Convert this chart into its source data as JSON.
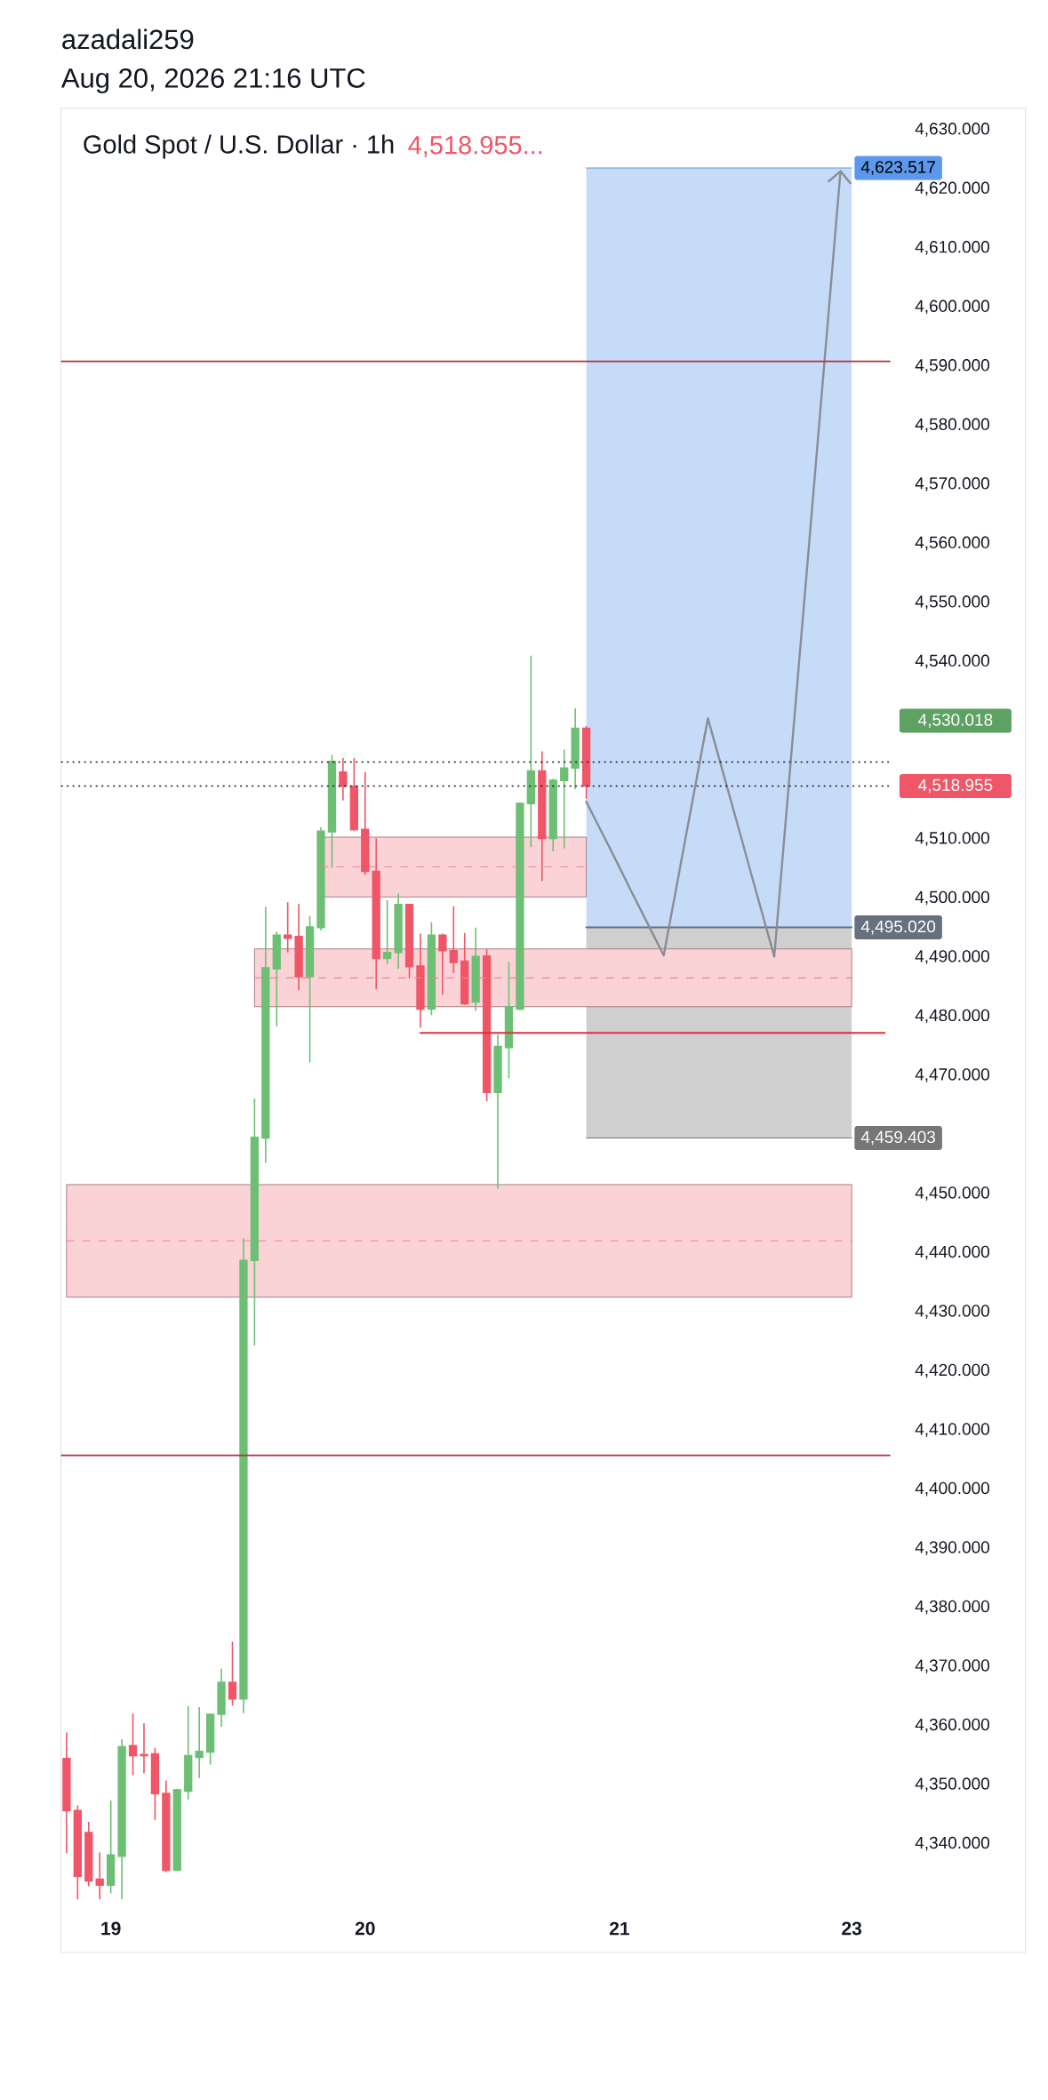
{
  "chart_data": {
    "type": "candlestick",
    "title": "Gold Spot / U.S. Dollar · 1h",
    "subtitle": "Aug 20, 2026 21:16 UTC",
    "annotations": [
      "azadali259",
      "4,518.955...",
      "4,530.018"
    ],
    "categories": [
      null,
      null,
      null,
      null,
      "19",
      null,
      null,
      null,
      null,
      null,
      null,
      null,
      null,
      null,
      null,
      null,
      null,
      null,
      null,
      null,
      null,
      null,
      null,
      null,
      null,
      null,
      null,
      "20",
      null,
      null,
      null,
      null,
      null,
      null,
      null,
      null,
      null,
      null,
      null,
      null,
      null,
      null,
      null,
      null,
      null,
      null,
      null,
      null,
      null,
      null,
      "21",
      null,
      null,
      null,
      null,
      null,
      null,
      null,
      null,
      null,
      null,
      null,
      null,
      null,
      null,
      null,
      null,
      null,
      null,
      null,
      null,
      "23",
      null,
      null,
      null
    ],
    "ohlc": [
      [
        4354.4,
        4358.8,
        4338.4,
        4345.6
      ],
      [
        4345.6,
        4346.5,
        4330.6,
        4334.5
      ],
      [
        4341.9,
        4343.7,
        4332.8,
        4333.7
      ],
      [
        4334.0,
        4338.5,
        4330.6,
        4333.0
      ],
      [
        4333.0,
        4347.3,
        4331.6,
        4338.1
      ],
      [
        4337.9,
        4357.7,
        4330.6,
        4356.4
      ],
      [
        4356.6,
        4362.0,
        4351.6,
        4354.9
      ],
      [
        4355.1,
        4360.4,
        4351.9,
        4354.9
      ],
      [
        4355.2,
        4356.2,
        4344.0,
        4348.5
      ],
      [
        4348.5,
        4350.7,
        4335.2,
        4335.5
      ],
      [
        4335.5,
        4349.3,
        4335.4,
        4349.1
      ],
      [
        4348.9,
        4363.3,
        4347.5,
        4354.9
      ],
      [
        4354.6,
        4363.1,
        4351.1,
        4355.6
      ],
      [
        4355.5,
        4362.0,
        4353.4,
        4361.9
      ],
      [
        4361.9,
        4369.6,
        4359.8,
        4367.3
      ],
      [
        4367.3,
        4374.2,
        4363.4,
        4364.5
      ],
      [
        4364.5,
        4442.4,
        4362.1,
        4438.7
      ],
      [
        4438.7,
        4466.1,
        4424.3,
        4459.5
      ],
      [
        4459.4,
        4498.5,
        4455.2,
        4488.2
      ],
      [
        4488.0,
        4494.3,
        4478.3,
        4493.7
      ],
      [
        4493.7,
        4499.3,
        4490.8,
        4493.2
      ],
      [
        4493.5,
        4499.0,
        4484.4,
        4486.7
      ],
      [
        4486.7,
        4497.0,
        4472.2,
        4495.1
      ],
      [
        4495.0,
        4512.0,
        4494.5,
        4511.3
      ],
      [
        4511.2,
        4524.2,
        4505.1,
        4523.1
      ],
      [
        4521.3,
        4523.7,
        4516.5,
        4518.9
      ],
      [
        4518.9,
        4523.7,
        4511.3,
        4511.6
      ],
      [
        4511.6,
        4521.3,
        4503.9,
        4504.5
      ],
      [
        4504.5,
        4510.1,
        4484.6,
        4489.8
      ],
      [
        4489.8,
        4499.7,
        4488.8,
        4490.8
      ],
      [
        4490.8,
        4500.8,
        4488.0,
        4498.9
      ],
      [
        4498.9,
        4499.0,
        4486.4,
        4488.4
      ],
      [
        4488.5,
        4494.0,
        4478.1,
        4481.2
      ],
      [
        4481.2,
        4495.9,
        4480.2,
        4493.7
      ],
      [
        4493.7,
        4494.0,
        4483.6,
        4491.1
      ],
      [
        4491.1,
        4498.6,
        4487.3,
        4489.1
      ],
      [
        4489.3,
        4494.1,
        4481.9,
        4482.1
      ],
      [
        4482.4,
        4495.0,
        4480.9,
        4490.1
      ],
      [
        4490.2,
        4491.3,
        4465.6,
        4467.1
      ],
      [
        4467.1,
        4476.9,
        4450.8,
        4474.9
      ],
      [
        4474.7,
        4489.2,
        4469.5,
        4481.6
      ],
      [
        4481.2,
        4516.2,
        4481.0,
        4516.0
      ],
      [
        4516.0,
        4541.0,
        4508.6,
        4521.5
      ],
      [
        4521.5,
        4524.8,
        4502.9,
        4510.1
      ],
      [
        4510.1,
        4520.2,
        4507.9,
        4519.9
      ],
      [
        4519.9,
        4525.1,
        4508.4,
        4522.0
      ],
      [
        4522.0,
        4532.1,
        4518.4,
        4528.7
      ],
      [
        4528.7,
        4529.1,
        4516.8,
        4518.955
      ],
      null,
      null,
      null,
      null,
      null,
      null,
      null,
      null,
      null,
      null,
      null,
      null,
      null,
      null,
      null,
      null,
      null,
      null,
      null,
      null,
      null,
      null,
      null,
      null,
      null,
      null,
      null
    ],
    "colors": [
      "#ef5667",
      "#ef5667",
      "#ef5667",
      "#ef5667",
      "#6dbf75",
      "#6dbf75",
      "#ef5667",
      "#ef5667",
      "#ef5667",
      "#ef5667",
      "#6dbf75",
      "#6dbf75",
      "#6dbf75",
      "#6dbf75",
      "#6dbf75",
      "#ef5667",
      "#6dbf75",
      "#6dbf75",
      "#6dbf75",
      "#6dbf75",
      "#ef5667",
      "#ef5667",
      "#6dbf75",
      "#6dbf75",
      "#6dbf75",
      "#ef5667",
      "#ef5667",
      "#ef5667",
      "#ef5667",
      "#6dbf75",
      "#6dbf75",
      "#ef5667",
      "#ef5667",
      "#6dbf75",
      "#ef5667",
      "#ef5667",
      "#ef5667",
      "#6dbf75",
      "#ef5667",
      "#6dbf75",
      "#6dbf75",
      "#6dbf75",
      "#6dbf75",
      "#ef5667",
      "#6dbf75",
      "#6dbf75",
      "#6dbf75",
      "#ef5667",
      null,
      null,
      null,
      null,
      null,
      null,
      null,
      null,
      null,
      null,
      null,
      null,
      null,
      null,
      null,
      null,
      null,
      null,
      null,
      null,
      null,
      null,
      null,
      null,
      null,
      null,
      null
    ],
    "series": [
      {
        "type": "line",
        "color": "#5c98eb",
        "values": [
          null,
          null,
          null,
          null,
          null,
          null,
          null,
          null,
          null,
          null,
          null,
          null,
          null,
          null,
          null,
          null,
          null,
          null,
          null,
          null,
          null,
          null,
          null,
          null,
          null,
          null,
          null,
          null,
          null,
          null,
          null,
          null,
          null,
          null,
          null,
          null,
          null,
          null,
          null,
          null,
          null,
          null,
          null,
          null,
          null,
          null,
          null,
          4623.517,
          4623.517,
          4623.517,
          4623.517,
          4623.517,
          4623.517,
          4623.517,
          4623.517,
          4623.517,
          4623.517,
          4623.517,
          4623.517,
          4623.517,
          4623.517,
          4623.517,
          4623.517,
          4623.517,
          4623.517,
          4623.517,
          4623.517,
          4623.517,
          4623.517,
          4623.517,
          4623.517,
          4623.517,
          null,
          null,
          null
        ],
        "lower": [
          null,
          null,
          null,
          null,
          null,
          null,
          null,
          null,
          null,
          null,
          null,
          null,
          null,
          null,
          null,
          null,
          null,
          null,
          null,
          null,
          null,
          null,
          null,
          null,
          null,
          null,
          null,
          null,
          null,
          null,
          null,
          null,
          null,
          null,
          null,
          null,
          null,
          null,
          null,
          null,
          null,
          null,
          null,
          null,
          null,
          null,
          null,
          4495.02,
          4495.02,
          4495.02,
          4495.02,
          4495.02,
          4495.02,
          4495.02,
          4495.02,
          4495.02,
          4495.02,
          4495.02,
          4495.02,
          4495.02,
          4495.02,
          4495.02,
          4495.02,
          4495.02,
          4495.02,
          4495.02,
          4495.02,
          4495.02,
          4495.02,
          4495.02,
          4495.02,
          4495.02,
          null,
          null,
          null
        ],
        "upper": [
          null,
          null,
          null,
          null,
          null,
          null,
          null,
          null,
          null,
          null,
          null,
          null,
          null,
          null,
          null,
          null,
          null,
          null,
          null,
          null,
          null,
          null,
          null,
          null,
          null,
          null,
          null,
          null,
          null,
          null,
          null,
          null,
          null,
          null,
          null,
          null,
          null,
          null,
          null,
          null,
          null,
          null,
          null,
          null,
          null,
          null,
          null,
          4623.517,
          4623.517,
          4623.517,
          4623.517,
          4623.517,
          4623.517,
          4623.517,
          4623.517,
          4623.517,
          4623.517,
          4623.517,
          4623.517,
          4623.517,
          4623.517,
          4623.517,
          4623.517,
          4623.517,
          4623.517,
          4623.517,
          4623.517,
          4623.517,
          4623.517,
          4623.517,
          4623.517,
          4623.517,
          null,
          null,
          null
        ],
        "value_labels": [
          null,
          null,
          null,
          null,
          null,
          null,
          null,
          null,
          null,
          null,
          null,
          null,
          null,
          null,
          null,
          null,
          null,
          null,
          null,
          null,
          null,
          null,
          null,
          null,
          null,
          null,
          null,
          null,
          null,
          null,
          null,
          null,
          null,
          null,
          null,
          null,
          null,
          null,
          null,
          null,
          null,
          null,
          null,
          null,
          null,
          null,
          null,
          null,
          null,
          null,
          null,
          null,
          null,
          null,
          null,
          null,
          null,
          null,
          null,
          null,
          null,
          null,
          null,
          null,
          null,
          null,
          null,
          null,
          null,
          null,
          null,
          "4,623.517",
          null,
          null,
          null
        ]
      },
      {
        "type": "line",
        "color": "#767676",
        "values": [
          null,
          null,
          null,
          null,
          null,
          null,
          null,
          null,
          null,
          null,
          null,
          null,
          null,
          null,
          null,
          null,
          null,
          null,
          null,
          null,
          null,
          null,
          null,
          null,
          null,
          null,
          null,
          null,
          null,
          null,
          null,
          null,
          null,
          null,
          null,
          null,
          null,
          null,
          null,
          null,
          null,
          null,
          null,
          null,
          null,
          null,
          null,
          4459.403,
          4459.403,
          4459.403,
          4459.403,
          4459.403,
          4459.403,
          4459.403,
          4459.403,
          4459.403,
          4459.403,
          4459.403,
          4459.403,
          4459.403,
          4459.403,
          4459.403,
          4459.403,
          4459.403,
          4459.403,
          4459.403,
          4459.403,
          4459.403,
          4459.403,
          4459.403,
          4459.403,
          4459.403,
          null,
          null,
          null
        ],
        "lower": [
          null,
          null,
          null,
          null,
          null,
          null,
          null,
          null,
          null,
          null,
          null,
          null,
          null,
          null,
          null,
          null,
          null,
          null,
          null,
          null,
          null,
          null,
          null,
          null,
          null,
          null,
          null,
          null,
          null,
          null,
          null,
          null,
          null,
          null,
          null,
          null,
          null,
          null,
          null,
          null,
          null,
          null,
          null,
          null,
          null,
          null,
          null,
          4459.403,
          4459.403,
          4459.403,
          4459.403,
          4459.403,
          4459.403,
          4459.403,
          4459.403,
          4459.403,
          4459.403,
          4459.403,
          4459.403,
          4459.403,
          4459.403,
          4459.403,
          4459.403,
          4459.403,
          4459.403,
          4459.403,
          4459.403,
          4459.403,
          4459.403,
          4459.403,
          4459.403,
          4459.403,
          null,
          null,
          null
        ],
        "upper": [
          null,
          null,
          null,
          null,
          null,
          null,
          null,
          null,
          null,
          null,
          null,
          null,
          null,
          null,
          null,
          null,
          null,
          null,
          null,
          null,
          null,
          null,
          null,
          null,
          null,
          null,
          null,
          null,
          null,
          null,
          null,
          null,
          null,
          null,
          null,
          null,
          null,
          null,
          null,
          null,
          null,
          null,
          null,
          null,
          null,
          null,
          null,
          4495.02,
          4495.02,
          4495.02,
          4495.02,
          4495.02,
          4495.02,
          4495.02,
          4495.02,
          4495.02,
          4495.02,
          4495.02,
          4495.02,
          4495.02,
          4495.02,
          4495.02,
          4495.02,
          4495.02,
          4495.02,
          4495.02,
          4495.02,
          4495.02,
          4495.02,
          4495.02,
          4495.02,
          4495.02,
          null,
          null,
          null
        ],
        "value_labels": [
          null,
          null,
          null,
          null,
          null,
          null,
          null,
          null,
          null,
          null,
          null,
          null,
          null,
          null,
          null,
          null,
          null,
          null,
          null,
          null,
          null,
          null,
          null,
          null,
          null,
          null,
          null,
          null,
          null,
          null,
          null,
          null,
          null,
          null,
          null,
          null,
          null,
          null,
          null,
          null,
          null,
          null,
          null,
          null,
          null,
          null,
          null,
          null,
          null,
          null,
          null,
          null,
          null,
          null,
          null,
          null,
          null,
          null,
          null,
          null,
          null,
          null,
          null,
          null,
          null,
          null,
          null,
          null,
          null,
          null,
          null,
          "4,459.403",
          null,
          null,
          null
        ]
      },
      {
        "type": "line",
        "color": "#f4818d",
        "line_style": "dashed",
        "values": [
          null,
          null,
          null,
          null,
          null,
          null,
          null,
          null,
          null,
          null,
          null,
          null,
          null,
          null,
          null,
          null,
          null,
          null,
          null,
          null,
          null,
          null,
          null,
          4505.3,
          4505.3,
          4505.3,
          4505.3,
          4505.3,
          4505.3,
          4505.3,
          4505.3,
          4505.3,
          4505.3,
          4505.3,
          4505.3,
          4505.3,
          4505.3,
          4505.3,
          4505.3,
          4505.3,
          4505.3,
          4505.3,
          4505.3,
          4505.3,
          4505.3,
          4505.3,
          4505.3,
          4505.3,
          null,
          null,
          null,
          null,
          null,
          null,
          null,
          null,
          null,
          null,
          null,
          null,
          null,
          null,
          null,
          null,
          null,
          null,
          null,
          null,
          null,
          null,
          null,
          null,
          null,
          null,
          null
        ],
        "lower": [
          null,
          null,
          null,
          null,
          null,
          null,
          null,
          null,
          null,
          null,
          null,
          null,
          null,
          null,
          null,
          null,
          null,
          null,
          null,
          null,
          null,
          null,
          null,
          4500.2,
          4500.2,
          4500.2,
          4500.2,
          4500.2,
          4500.2,
          4500.2,
          4500.2,
          4500.2,
          4500.2,
          4500.2,
          4500.2,
          4500.2,
          4500.2,
          4500.2,
          4500.2,
          4500.2,
          4500.2,
          4500.2,
          4500.2,
          4500.2,
          4500.2,
          4500.2,
          4500.2,
          4500.2,
          null,
          null,
          null,
          null,
          null,
          null,
          null,
          null,
          null,
          null,
          null,
          null,
          null,
          null,
          null,
          null,
          null,
          null,
          null,
          null,
          null,
          null,
          null,
          null,
          null,
          null,
          null
        ],
        "upper": [
          null,
          null,
          null,
          null,
          null,
          null,
          null,
          null,
          null,
          null,
          null,
          null,
          null,
          null,
          null,
          null,
          null,
          null,
          null,
          null,
          null,
          null,
          null,
          4510.3,
          4510.3,
          4510.3,
          4510.3,
          4510.3,
          4510.3,
          4510.3,
          4510.3,
          4510.3,
          4510.3,
          4510.3,
          4510.3,
          4510.3,
          4510.3,
          4510.3,
          4510.3,
          4510.3,
          4510.3,
          4510.3,
          4510.3,
          4510.3,
          4510.3,
          4510.3,
          4510.3,
          4510.3,
          null,
          null,
          null,
          null,
          null,
          null,
          null,
          null,
          null,
          null,
          null,
          null,
          null,
          null,
          null,
          null,
          null,
          null,
          null,
          null,
          null,
          null,
          null,
          null,
          null,
          null,
          null
        ]
      },
      {
        "type": "line",
        "color": "#f4818d",
        "line_style": "dashed",
        "values": [
          null,
          null,
          null,
          null,
          null,
          null,
          null,
          null,
          null,
          null,
          null,
          null,
          null,
          null,
          null,
          null,
          null,
          4486.5,
          4486.5,
          4486.5,
          4486.5,
          4486.5,
          4486.5,
          4486.5,
          4486.5,
          4486.5,
          4486.5,
          4486.5,
          4486.5,
          4486.5,
          4486.5,
          4486.5,
          4486.5,
          4486.5,
          4486.5,
          4486.5,
          4486.5,
          4486.5,
          4486.5,
          4486.5,
          4486.5,
          4486.5,
          4486.5,
          4486.5,
          4486.5,
          4486.5,
          4486.5,
          4486.5,
          4486.5,
          4486.5,
          4486.5,
          4486.5,
          4486.5,
          4486.5,
          4486.5,
          4486.5,
          4486.5,
          4486.5,
          4486.5,
          4486.5,
          4486.5,
          4486.5,
          4486.5,
          4486.5,
          4486.5,
          4486.5,
          4486.5,
          4486.5,
          4486.5,
          4486.5,
          4486.5,
          4486.5,
          null,
          null,
          null
        ],
        "lower": [
          null,
          null,
          null,
          null,
          null,
          null,
          null,
          null,
          null,
          null,
          null,
          null,
          null,
          null,
          null,
          null,
          null,
          4481.6,
          4481.6,
          4481.6,
          4481.6,
          4481.6,
          4481.6,
          4481.6,
          4481.6,
          4481.6,
          4481.6,
          4481.6,
          4481.6,
          4481.6,
          4481.6,
          4481.6,
          4481.6,
          4481.6,
          4481.6,
          4481.6,
          4481.6,
          4481.6,
          4481.6,
          4481.6,
          4481.6,
          4481.6,
          4481.6,
          4481.6,
          4481.6,
          4481.6,
          4481.6,
          4481.6,
          4481.6,
          4481.6,
          4481.6,
          4481.6,
          4481.6,
          4481.6,
          4481.6,
          4481.6,
          4481.6,
          4481.6,
          4481.6,
          4481.6,
          4481.6,
          4481.6,
          4481.6,
          4481.6,
          4481.6,
          4481.6,
          4481.6,
          4481.6,
          4481.6,
          4481.6,
          4481.6,
          4481.6,
          null,
          null,
          null
        ],
        "upper": [
          null,
          null,
          null,
          null,
          null,
          null,
          null,
          null,
          null,
          null,
          null,
          null,
          null,
          null,
          null,
          null,
          null,
          4491.4,
          4491.4,
          4491.4,
          4491.4,
          4491.4,
          4491.4,
          4491.4,
          4491.4,
          4491.4,
          4491.4,
          4491.4,
          4491.4,
          4491.4,
          4491.4,
          4491.4,
          4491.4,
          4491.4,
          4491.4,
          4491.4,
          4491.4,
          4491.4,
          4491.4,
          4491.4,
          4491.4,
          4491.4,
          4491.4,
          4491.4,
          4491.4,
          4491.4,
          4491.4,
          4491.4,
          4491.4,
          4491.4,
          4491.4,
          4491.4,
          4491.4,
          4491.4,
          4491.4,
          4491.4,
          4491.4,
          4491.4,
          4491.4,
          4491.4,
          4491.4,
          4491.4,
          4491.4,
          4491.4,
          4491.4,
          4491.4,
          4491.4,
          4491.4,
          4491.4,
          4491.4,
          4491.4,
          4491.4,
          null,
          null,
          null
        ]
      },
      {
        "type": "line",
        "color": "#f4818d",
        "line_style": "dashed",
        "values": [
          4442.0,
          4442.0,
          4442.0,
          4442.0,
          4442.0,
          4442.0,
          4442.0,
          4442.0,
          4442.0,
          4442.0,
          4442.0,
          4442.0,
          4442.0,
          4442.0,
          4442.0,
          4442.0,
          4442.0,
          4442.0,
          4442.0,
          4442.0,
          4442.0,
          4442.0,
          4442.0,
          4442.0,
          4442.0,
          4442.0,
          4442.0,
          4442.0,
          4442.0,
          4442.0,
          4442.0,
          4442.0,
          4442.0,
          4442.0,
          4442.0,
          4442.0,
          4442.0,
          4442.0,
          4442.0,
          4442.0,
          4442.0,
          4442.0,
          4442.0,
          4442.0,
          4442.0,
          4442.0,
          4442.0,
          4442.0,
          4442.0,
          4442.0,
          4442.0,
          4442.0,
          4442.0,
          4442.0,
          4442.0,
          4442.0,
          4442.0,
          4442.0,
          4442.0,
          4442.0,
          4442.0,
          4442.0,
          4442.0,
          4442.0,
          4442.0,
          4442.0,
          4442.0,
          4442.0,
          4442.0,
          4442.0,
          4442.0,
          4442.0,
          null,
          null,
          null
        ],
        "lower": [
          4432.5,
          4432.5,
          4432.5,
          4432.5,
          4432.5,
          4432.5,
          4432.5,
          4432.5,
          4432.5,
          4432.5,
          4432.5,
          4432.5,
          4432.5,
          4432.5,
          4432.5,
          4432.5,
          4432.5,
          4432.5,
          4432.5,
          4432.5,
          4432.5,
          4432.5,
          4432.5,
          4432.5,
          4432.5,
          4432.5,
          4432.5,
          4432.5,
          4432.5,
          4432.5,
          4432.5,
          4432.5,
          4432.5,
          4432.5,
          4432.5,
          4432.5,
          4432.5,
          4432.5,
          4432.5,
          4432.5,
          4432.5,
          4432.5,
          4432.5,
          4432.5,
          4432.5,
          4432.5,
          4432.5,
          4432.5,
          4432.5,
          4432.5,
          4432.5,
          4432.5,
          4432.5,
          4432.5,
          4432.5,
          4432.5,
          4432.5,
          4432.5,
          4432.5,
          4432.5,
          4432.5,
          4432.5,
          4432.5,
          4432.5,
          4432.5,
          4432.5,
          4432.5,
          4432.5,
          4432.5,
          4432.5,
          4432.5,
          4432.5,
          null,
          null,
          null
        ],
        "upper": [
          4451.5,
          4451.5,
          4451.5,
          4451.5,
          4451.5,
          4451.5,
          4451.5,
          4451.5,
          4451.5,
          4451.5,
          4451.5,
          4451.5,
          4451.5,
          4451.5,
          4451.5,
          4451.5,
          4451.5,
          4451.5,
          4451.5,
          4451.5,
          4451.5,
          4451.5,
          4451.5,
          4451.5,
          4451.5,
          4451.5,
          4451.5,
          4451.5,
          4451.5,
          4451.5,
          4451.5,
          4451.5,
          4451.5,
          4451.5,
          4451.5,
          4451.5,
          4451.5,
          4451.5,
          4451.5,
          4451.5,
          4451.5,
          4451.5,
          4451.5,
          4451.5,
          4451.5,
          4451.5,
          4451.5,
          4451.5,
          4451.5,
          4451.5,
          4451.5,
          4451.5,
          4451.5,
          4451.5,
          4451.5,
          4451.5,
          4451.5,
          4451.5,
          4451.5,
          4451.5,
          4451.5,
          4451.5,
          4451.5,
          4451.5,
          4451.5,
          4451.5,
          4451.5,
          4451.5,
          4451.5,
          4451.5,
          4451.5,
          4451.5,
          null,
          null,
          null
        ]
      },
      {
        "type": "line",
        "color": "#66707e",
        "values": [
          null,
          null,
          null,
          null,
          null,
          null,
          null,
          null,
          null,
          null,
          null,
          null,
          null,
          null,
          null,
          null,
          null,
          null,
          null,
          null,
          null,
          null,
          null,
          null,
          null,
          null,
          null,
          null,
          null,
          null,
          null,
          null,
          null,
          null,
          null,
          null,
          null,
          null,
          null,
          null,
          null,
          null,
          null,
          null,
          null,
          null,
          null,
          4495.02,
          4495.02,
          4495.02,
          4495.02,
          4495.02,
          4495.02,
          4495.02,
          4495.02,
          4495.02,
          4495.02,
          4495.02,
          4495.02,
          4495.02,
          4495.02,
          4495.02,
          4495.02,
          4495.02,
          4495.02,
          4495.02,
          4495.02,
          4495.02,
          4495.02,
          4495.02,
          4495.02,
          4495.02,
          null,
          null,
          null
        ],
        "value_labels": [
          null,
          null,
          null,
          null,
          null,
          null,
          null,
          null,
          null,
          null,
          null,
          null,
          null,
          null,
          null,
          null,
          null,
          null,
          null,
          null,
          null,
          null,
          null,
          null,
          null,
          null,
          null,
          null,
          null,
          null,
          null,
          null,
          null,
          null,
          null,
          null,
          null,
          null,
          null,
          null,
          null,
          null,
          null,
          null,
          null,
          null,
          null,
          null,
          null,
          null,
          null,
          null,
          null,
          null,
          null,
          null,
          null,
          null,
          null,
          null,
          null,
          null,
          null,
          null,
          null,
          null,
          null,
          null,
          null,
          null,
          null,
          "4,495.020",
          null,
          null,
          null
        ]
      },
      {
        "type": "line",
        "color": "#d9323f",
        "values": [
          null,
          null,
          null,
          null,
          null,
          null,
          null,
          null,
          null,
          null,
          null,
          null,
          null,
          null,
          null,
          null,
          null,
          null,
          null,
          null,
          null,
          null,
          null,
          null,
          null,
          null,
          null,
          null,
          null,
          null,
          null,
          null,
          4477.2,
          4477.2,
          4477.2,
          4477.2,
          4477.2,
          4477.2,
          4477.2,
          4477.2,
          4477.2,
          4477.2,
          4477.2,
          4477.2,
          4477.2,
          4477.2,
          4477.2,
          4477.2,
          4477.2,
          4477.2,
          4477.2,
          4477.2,
          4477.2,
          4477.2,
          4477.2,
          4477.2,
          4477.2,
          4477.2,
          4477.2,
          4477.2,
          4477.2,
          4477.2,
          4477.2,
          4477.2,
          4477.2,
          4477.2,
          4477.2,
          4477.2,
          4477.2,
          4477.2,
          4477.2,
          4477.2,
          4477.2,
          4477.2,
          4477.2
        ]
      },
      {
        "type": "line",
        "color": "#8a8d95",
        "values": [
          null,
          null,
          null,
          null,
          null,
          null,
          null,
          null,
          null,
          null,
          null,
          null,
          null,
          null,
          null,
          null,
          null,
          null,
          null,
          null,
          null,
          null,
          null,
          null,
          null,
          null,
          null,
          null,
          null,
          null,
          null,
          null,
          null,
          null,
          null,
          null,
          null,
          null,
          null,
          null,
          null,
          null,
          null,
          null,
          null,
          null,
          null,
          4516.3,
          4512.6,
          4508.9,
          4505.2,
          4501.4,
          4497.7,
          4494.0,
          4490.3,
          4500.3,
          4510.4,
          4520.4,
          4530.4,
          4523.7,
          4517.0,
          4510.3,
          4503.5,
          4496.8,
          4490.1,
          4512.3,
          4534.5,
          4556.6,
          4578.8,
          4601.0,
          4623.2,
          null,
          null,
          null,
          null
        ]
      }
    ],
    "ref_lines": [
      {
        "axis": "y",
        "value": 4590.8,
        "color": "#b2323d"
      },
      {
        "axis": "y",
        "value": 4405.7,
        "color": "#b2323d"
      },
      {
        "axis": "y",
        "value": 4523.0,
        "color": "#131722",
        "line_style": "dotted"
      },
      {
        "axis": "y",
        "value": 4518.955,
        "color": "#131722",
        "line_style": "dotted",
        "label": "4,518.955"
      }
    ],
    "ylim": [
      4321.6,
      4633.6
    ],
    "yticks": [
      {
        "value": 4340,
        "label": "4,340.000"
      },
      {
        "value": 4350,
        "label": "4,350.000"
      },
      {
        "value": 4360,
        "label": "4,360.000"
      },
      {
        "value": 4370,
        "label": "4,370.000"
      },
      {
        "value": 4380,
        "label": "4,380.000"
      },
      {
        "value": 4390,
        "label": "4,390.000"
      },
      {
        "value": 4400,
        "label": "4,400.000"
      },
      {
        "value": 4410,
        "label": "4,410.000"
      },
      {
        "value": 4420,
        "label": "4,420.000"
      },
      {
        "value": 4430,
        "label": "4,430.000"
      },
      {
        "value": 4440,
        "label": "4,440.000"
      },
      {
        "value": 4450,
        "label": "4,450.000"
      },
      {
        "value": 4470,
        "label": "4,470.000"
      },
      {
        "value": 4480,
        "label": "4,480.000"
      },
      {
        "value": 4490,
        "label": "4,490.000"
      },
      {
        "value": 4500,
        "label": "4,500.000"
      },
      {
        "value": 4510,
        "label": "4,510.000"
      },
      {
        "value": 4540,
        "label": "4,540.000"
      },
      {
        "value": 4550,
        "label": "4,550.000"
      },
      {
        "value": 4560,
        "label": "4,560.000"
      },
      {
        "value": 4570,
        "label": "4,570.000"
      },
      {
        "value": 4580,
        "label": "4,580.000"
      },
      {
        "value": 4590,
        "label": "4,590.000"
      },
      {
        "value": 4600,
        "label": "4,600.000"
      },
      {
        "value": 4610,
        "label": "4,610.000"
      },
      {
        "value": 4620,
        "label": "4,620.000"
      },
      {
        "value": 4630,
        "label": "4,630.000"
      }
    ]
  }
}
